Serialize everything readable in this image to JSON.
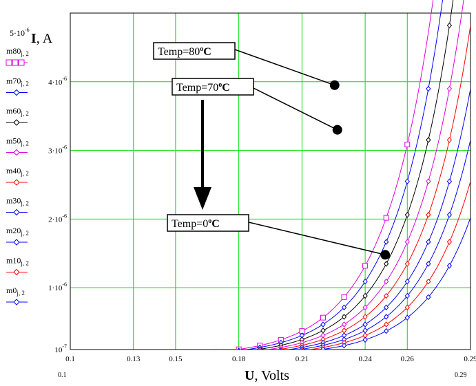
{
  "chart_data": {
    "type": "line",
    "xlabel_bold": "U",
    "xlabel_rest": ", Volts",
    "ylabel_bold": "I",
    "ylabel_rest": ", A",
    "xlim": [
      0.1,
      0.29
    ],
    "ylim": [
      1e-07,
      5e-06
    ],
    "x_axis_min_label": "0.1",
    "x_axis_max_label": "0.29",
    "y_top_label": "5·10",
    "y_top_exp": "-6",
    "x_ticks": [
      {
        "v": 0.1,
        "label": "0.1"
      },
      {
        "v": 0.13,
        "label": "0.13"
      },
      {
        "v": 0.15,
        "label": "0.15"
      },
      {
        "v": 0.18,
        "label": "0.18"
      },
      {
        "v": 0.21,
        "label": "0.21"
      },
      {
        "v": 0.24,
        "label": "0.24"
      },
      {
        "v": 0.26,
        "label": "0.26"
      },
      {
        "v": 0.29,
        "label": "0.29"
      }
    ],
    "y_ticks": [
      {
        "v": 1e-07,
        "mant": "10",
        "exp": "-7"
      },
      {
        "v": 1e-06,
        "mant": "1·10",
        "exp": "-6"
      },
      {
        "v": 2e-06,
        "mant": "2·10",
        "exp": "-6"
      },
      {
        "v": 3e-06,
        "mant": "3·10",
        "exp": "-6"
      },
      {
        "v": 4e-06,
        "mant": "4·10",
        "exp": "-6"
      }
    ],
    "series": [
      {
        "name": "m80",
        "sub": "j, 2",
        "color": "#e000e0",
        "marker": "square",
        "shift": 0.0,
        "n": 17
      },
      {
        "name": "m70",
        "sub": "j, 2",
        "color": "#0000ff",
        "marker": "diamond",
        "shift": 0.0045,
        "n": 19
      },
      {
        "name": "m60",
        "sub": "j, 2",
        "color": "#000000",
        "marker": "diamond",
        "shift": 0.0095,
        "n": 19
      },
      {
        "name": "m50",
        "sub": "j, 2",
        "color": "#e000e0",
        "marker": "diamond",
        "shift": 0.0145,
        "n": 19
      },
      {
        "name": "m40",
        "sub": "j, 2",
        "color": "#ff0000",
        "marker": "diamond",
        "shift": 0.0195,
        "n": 19
      },
      {
        "name": "m30",
        "sub": "j, 2",
        "color": "#0000ff",
        "marker": "diamond",
        "shift": 0.0245,
        "n": 19
      },
      {
        "name": "m20",
        "sub": "j, 2",
        "color": "#0000ff",
        "marker": "diamond",
        "shift": 0.0295,
        "n": 19
      },
      {
        "name": "m10",
        "sub": "j, 2",
        "color": "#ff0000",
        "marker": "diamond",
        "shift": 0.0345,
        "n": 19
      },
      {
        "name": "m0",
        "sub": "j, 2",
        "color": "#0000ff",
        "marker": "diamond",
        "shift": 0.04,
        "n": 19
      }
    ],
    "annotations": [
      {
        "label": "Temp=80",
        "unit": "C",
        "target_x": 0.2255,
        "target_y": 3.95e-06
      },
      {
        "label": "Temp=70",
        "unit": "C",
        "target_x": 0.2268,
        "target_y": 3.3e-06
      },
      {
        "label": "Temp=0",
        "unit": "C",
        "target_x": 0.2495,
        "target_y": 1.48e-06
      }
    ],
    "arrow": {
      "direction": "down"
    },
    "grid": true
  }
}
